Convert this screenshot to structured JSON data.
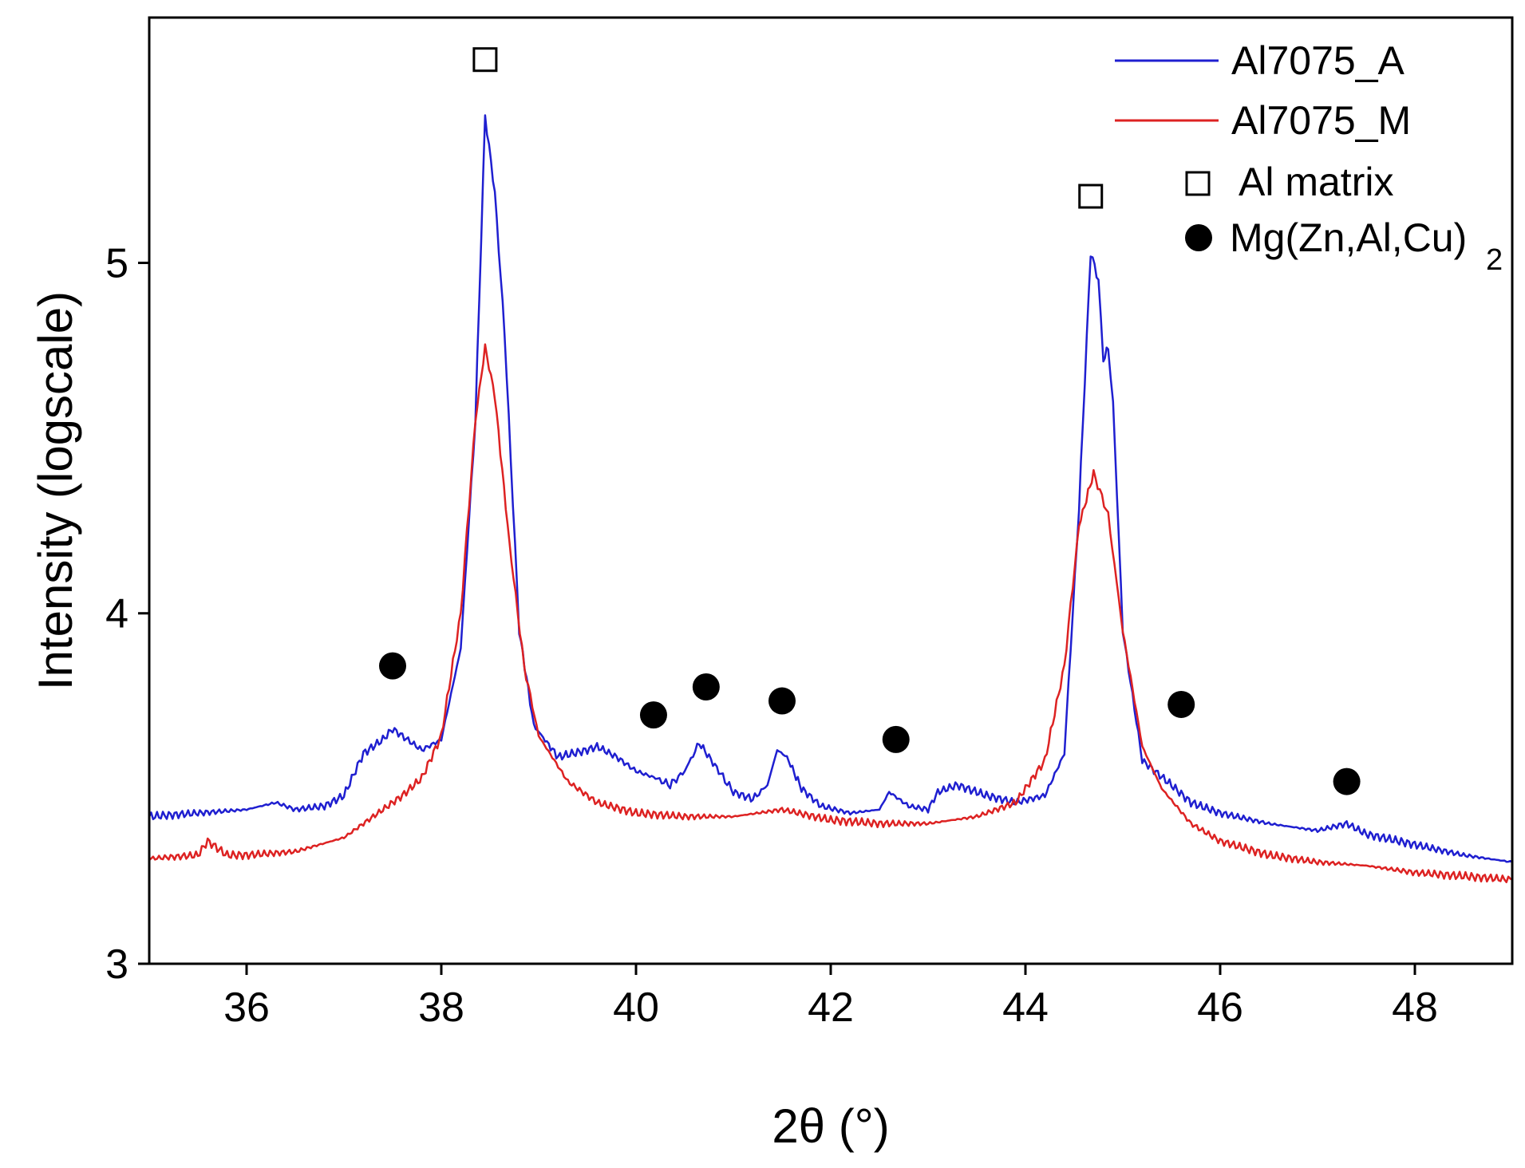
{
  "chart_data": {
    "type": "line",
    "title": "",
    "xlabel": "2θ (°)",
    "ylabel": "Intensity (logscale)",
    "xlim": [
      35,
      49
    ],
    "ylim": [
      3,
      5.7
    ],
    "xticks": [
      36,
      38,
      40,
      42,
      44,
      46,
      48
    ],
    "yticks": [
      3,
      4,
      5
    ],
    "series": [
      {
        "name": "Al7075_A",
        "color": "#1f1fd0",
        "points": [
          [
            35.0,
            3.42
          ],
          [
            35.5,
            3.43
          ],
          [
            36.0,
            3.44
          ],
          [
            36.3,
            3.46
          ],
          [
            36.5,
            3.44
          ],
          [
            36.8,
            3.45
          ],
          [
            37.0,
            3.48
          ],
          [
            37.2,
            3.6
          ],
          [
            37.4,
            3.64
          ],
          [
            37.5,
            3.67
          ],
          [
            37.6,
            3.65
          ],
          [
            37.8,
            3.61
          ],
          [
            38.0,
            3.64
          ],
          [
            38.2,
            3.9
          ],
          [
            38.35,
            4.55
          ],
          [
            38.45,
            5.42
          ],
          [
            38.55,
            5.2
          ],
          [
            38.65,
            4.8
          ],
          [
            38.8,
            3.95
          ],
          [
            38.95,
            3.68
          ],
          [
            39.2,
            3.59
          ],
          [
            39.5,
            3.61
          ],
          [
            39.6,
            3.62
          ],
          [
            39.8,
            3.59
          ],
          [
            40.0,
            3.55
          ],
          [
            40.2,
            3.53
          ],
          [
            40.35,
            3.51
          ],
          [
            40.5,
            3.55
          ],
          [
            40.65,
            3.63
          ],
          [
            40.85,
            3.55
          ],
          [
            41.0,
            3.49
          ],
          [
            41.2,
            3.47
          ],
          [
            41.35,
            3.51
          ],
          [
            41.45,
            3.61
          ],
          [
            41.55,
            3.59
          ],
          [
            41.7,
            3.5
          ],
          [
            41.9,
            3.45
          ],
          [
            42.2,
            3.43
          ],
          [
            42.5,
            3.44
          ],
          [
            42.6,
            3.49
          ],
          [
            42.8,
            3.45
          ],
          [
            43.0,
            3.44
          ],
          [
            43.1,
            3.49
          ],
          [
            43.3,
            3.51
          ],
          [
            43.6,
            3.48
          ],
          [
            43.9,
            3.46
          ],
          [
            44.2,
            3.48
          ],
          [
            44.4,
            3.6
          ],
          [
            44.55,
            4.3
          ],
          [
            44.67,
            5.03
          ],
          [
            44.75,
            4.95
          ],
          [
            44.8,
            4.72
          ],
          [
            44.85,
            4.76
          ],
          [
            44.9,
            4.6
          ],
          [
            45.0,
            3.95
          ],
          [
            45.2,
            3.58
          ],
          [
            45.5,
            3.51
          ],
          [
            45.7,
            3.46
          ],
          [
            46.0,
            3.43
          ],
          [
            46.5,
            3.4
          ],
          [
            47.0,
            3.38
          ],
          [
            47.3,
            3.4
          ],
          [
            47.5,
            3.37
          ],
          [
            48.0,
            3.34
          ],
          [
            48.5,
            3.31
          ],
          [
            49.0,
            3.29
          ]
        ]
      },
      {
        "name": "Al7075_M",
        "color": "#dd2222",
        "points": [
          [
            35.0,
            3.3
          ],
          [
            35.5,
            3.31
          ],
          [
            35.6,
            3.35
          ],
          [
            35.8,
            3.31
          ],
          [
            36.0,
            3.31
          ],
          [
            36.5,
            3.32
          ],
          [
            37.0,
            3.36
          ],
          [
            37.3,
            3.42
          ],
          [
            37.6,
            3.48
          ],
          [
            37.8,
            3.53
          ],
          [
            38.0,
            3.65
          ],
          [
            38.2,
            4.0
          ],
          [
            38.35,
            4.55
          ],
          [
            38.45,
            4.76
          ],
          [
            38.55,
            4.62
          ],
          [
            38.7,
            4.2
          ],
          [
            38.85,
            3.85
          ],
          [
            39.0,
            3.65
          ],
          [
            39.3,
            3.52
          ],
          [
            39.6,
            3.46
          ],
          [
            40.0,
            3.43
          ],
          [
            40.5,
            3.42
          ],
          [
            41.0,
            3.42
          ],
          [
            41.5,
            3.44
          ],
          [
            42.0,
            3.41
          ],
          [
            42.5,
            3.4
          ],
          [
            43.0,
            3.4
          ],
          [
            43.5,
            3.42
          ],
          [
            43.9,
            3.46
          ],
          [
            44.2,
            3.58
          ],
          [
            44.4,
            3.85
          ],
          [
            44.55,
            4.25
          ],
          [
            44.7,
            4.4
          ],
          [
            44.85,
            4.28
          ],
          [
            45.0,
            3.95
          ],
          [
            45.2,
            3.62
          ],
          [
            45.4,
            3.5
          ],
          [
            45.7,
            3.4
          ],
          [
            46.0,
            3.35
          ],
          [
            46.5,
            3.31
          ],
          [
            47.0,
            3.29
          ],
          [
            47.5,
            3.28
          ],
          [
            48.0,
            3.26
          ],
          [
            48.5,
            3.25
          ],
          [
            49.0,
            3.24
          ]
        ]
      }
    ],
    "markers": [
      {
        "label": "Al matrix",
        "symbol": "open-square",
        "points": [
          [
            38.45,
            5.58
          ],
          [
            44.67,
            5.19
          ]
        ]
      },
      {
        "label": "Mg(Zn,Al,Cu)2",
        "symbol": "filled-circle",
        "points": [
          [
            37.5,
            3.85
          ],
          [
            40.18,
            3.71
          ],
          [
            40.72,
            3.79
          ],
          [
            41.5,
            3.75
          ],
          [
            42.67,
            3.64
          ],
          [
            45.6,
            3.74
          ],
          [
            47.3,
            3.52
          ]
        ]
      }
    ],
    "legend": {
      "position": "top-right",
      "entries": [
        "Al7075_A",
        "Al7075_M",
        "Al matrix",
        "Mg(Zn,Al,Cu)"
      ],
      "subscript": "2"
    }
  }
}
